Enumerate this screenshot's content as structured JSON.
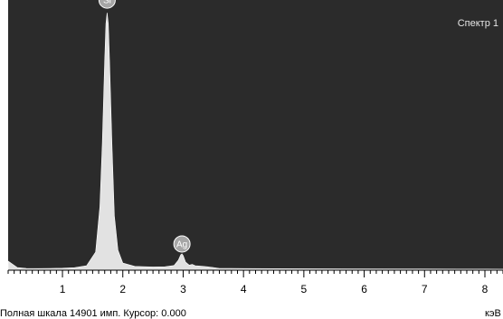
{
  "chart_data": {
    "type": "line",
    "title": "Спектр 1",
    "x_unit": "кэВ",
    "status": "Полная шкала 14901 имп. Курсор: 0.000",
    "xlim": [
      0.1,
      8.3
    ],
    "ylim": [
      0,
      14901
    ],
    "x_ticks": [
      1,
      2,
      3,
      4,
      5,
      6,
      7,
      8
    ],
    "grid": false,
    "colors": {
      "plot_bg": "#2b2b2b",
      "spectrum_fill": "#e2e2e2",
      "marker_fill": "#a6a6a6"
    },
    "peaks": [
      {
        "label": "Si",
        "energy": 1.74,
        "counts": 14200,
        "sigma": 0.055
      },
      {
        "label": "Ag",
        "energy": 2.98,
        "counts": 750,
        "sigma": 0.045
      }
    ],
    "series": [
      {
        "x": [
          0.1,
          0.25,
          0.4,
          0.6,
          0.8,
          1.0,
          1.2,
          1.4,
          1.55,
          1.62,
          1.66,
          1.7,
          1.72,
          1.74,
          1.76,
          1.78,
          1.82,
          1.86,
          1.92,
          2.0,
          2.2,
          2.5,
          2.7,
          2.85,
          2.92,
          2.96,
          2.98,
          3.0,
          3.04,
          3.1,
          3.15,
          3.2,
          3.3,
          3.4,
          3.5,
          3.6,
          4.0,
          5.0,
          6.0,
          7.0,
          8.0,
          8.3
        ],
        "y": [
          500,
          150,
          100,
          90,
          100,
          110,
          140,
          250,
          1000,
          3500,
          7000,
          11500,
          13600,
          14200,
          13600,
          11500,
          7000,
          3000,
          1100,
          400,
          210,
          180,
          190,
          260,
          550,
          850,
          900,
          800,
          450,
          280,
          320,
          250,
          220,
          190,
          150,
          100,
          90,
          80,
          70,
          65,
          60,
          55
        ]
      }
    ]
  }
}
